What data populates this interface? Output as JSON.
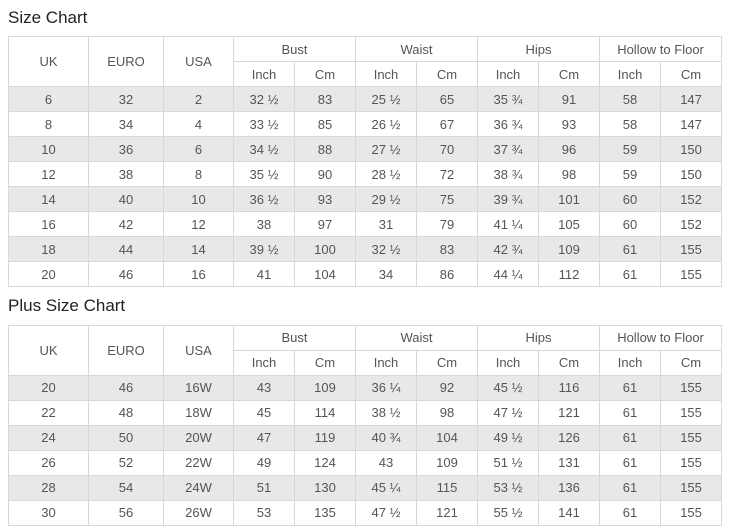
{
  "colors": {
    "stripe": "#e8e8e8",
    "border": "#d8d8d8",
    "text": "#555555",
    "title": "#222222"
  },
  "tables": [
    {
      "title": "Size Chart",
      "left_headers": [
        "UK",
        "EURO",
        "USA"
      ],
      "group_headers": [
        "Bust",
        "Waist",
        "Hips",
        "Hollow to Floor"
      ],
      "sub_headers": [
        "Inch",
        "Cm"
      ],
      "rows": [
        [
          "6",
          "32",
          "2",
          "32 ½",
          "83",
          "25 ½",
          "65",
          "35 ¾",
          "91",
          "58",
          "147"
        ],
        [
          "8",
          "34",
          "4",
          "33 ½",
          "85",
          "26 ½",
          "67",
          "36 ¾",
          "93",
          "58",
          "147"
        ],
        [
          "10",
          "36",
          "6",
          "34 ½",
          "88",
          "27 ½",
          "70",
          "37 ¾",
          "96",
          "59",
          "150"
        ],
        [
          "12",
          "38",
          "8",
          "35 ½",
          "90",
          "28 ½",
          "72",
          "38 ¾",
          "98",
          "59",
          "150"
        ],
        [
          "14",
          "40",
          "10",
          "36 ½",
          "93",
          "29 ½",
          "75",
          "39 ¾",
          "101",
          "60",
          "152"
        ],
        [
          "16",
          "42",
          "12",
          "38",
          "97",
          "31",
          "79",
          "41 ¼",
          "105",
          "60",
          "152"
        ],
        [
          "18",
          "44",
          "14",
          "39 ½",
          "100",
          "32 ½",
          "83",
          "42 ¾",
          "109",
          "61",
          "155"
        ],
        [
          "20",
          "46",
          "16",
          "41",
          "104",
          "34",
          "86",
          "44 ¼",
          "112",
          "61",
          "155"
        ]
      ]
    },
    {
      "title": "Plus Size Chart",
      "left_headers": [
        "UK",
        "EURO",
        "USA"
      ],
      "group_headers": [
        "Bust",
        "Waist",
        "Hips",
        "Hollow to Floor"
      ],
      "sub_headers": [
        "Inch",
        "Cm"
      ],
      "rows": [
        [
          "20",
          "46",
          "16W",
          "43",
          "109",
          "36 ¼",
          "92",
          "45 ½",
          "116",
          "61",
          "155"
        ],
        [
          "22",
          "48",
          "18W",
          "45",
          "114",
          "38 ½",
          "98",
          "47 ½",
          "121",
          "61",
          "155"
        ],
        [
          "24",
          "50",
          "20W",
          "47",
          "119",
          "40 ¾",
          "104",
          "49 ½",
          "126",
          "61",
          "155"
        ],
        [
          "26",
          "52",
          "22W",
          "49",
          "124",
          "43",
          "109",
          "51 ½",
          "131",
          "61",
          "155"
        ],
        [
          "28",
          "54",
          "24W",
          "51",
          "130",
          "45 ¼",
          "115",
          "53 ½",
          "136",
          "61",
          "155"
        ],
        [
          "30",
          "56",
          "26W",
          "53",
          "135",
          "47 ½",
          "121",
          "55 ½",
          "141",
          "61",
          "155"
        ]
      ]
    }
  ]
}
